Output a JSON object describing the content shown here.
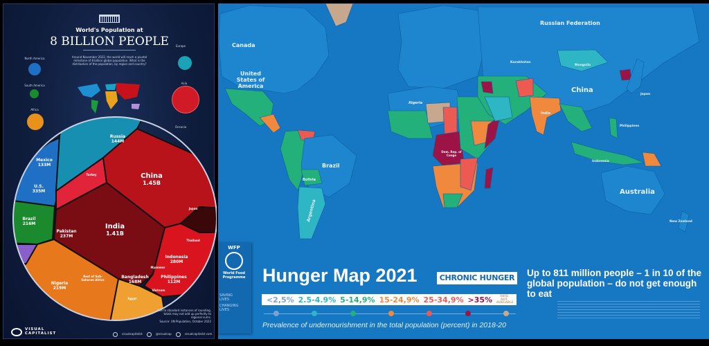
{
  "population": {
    "kicker": "World's Population at",
    "title": "8 BILLION PEOPLE",
    "intro": "Around November 2022, the world will reach a pivotal milestone of 8 billion global population. What is the distribution of the population, by region and country?",
    "regions": {
      "north_america": "North America",
      "south_america": "South America",
      "africa": "Africa",
      "europe": "Europe",
      "asia": "Asia",
      "oceania": "Oceania"
    },
    "countries": [
      {
        "name": "China",
        "value": "1.45B"
      },
      {
        "name": "India",
        "value": "1.41B"
      },
      {
        "name": "U.S.",
        "value": "335M"
      },
      {
        "name": "Brazil",
        "value": "216M"
      },
      {
        "name": "Indonesia",
        "value": "280M"
      },
      {
        "name": "Nigeria",
        "value": "219M"
      },
      {
        "name": "Pakistan",
        "value": "237M"
      },
      {
        "name": "Mexico",
        "value": "133M"
      },
      {
        "name": "Russia",
        "value": "144M"
      },
      {
        "name": "Bangladesh",
        "value": "168M"
      },
      {
        "name": "Philippines",
        "value": "112M"
      },
      {
        "name": "Myanmar",
        "value": ""
      },
      {
        "name": "Vietnam",
        "value": ""
      },
      {
        "name": "Japan",
        "value": ""
      },
      {
        "name": "Thailand",
        "value": ""
      },
      {
        "name": "Turkey",
        "value": ""
      },
      {
        "name": "Egypt",
        "value": ""
      },
      {
        "name": "Rest of Sub-Saharan Africa",
        "value": ""
      }
    ],
    "footnote": "Due to standard instances of rounding, totals may not add up perfectly to regional sums.",
    "source": "Source: UN Population, October 2022",
    "logo": "VISUAL CAPITALIST",
    "social": [
      "visualcapitalist",
      "@visualcap",
      "visualcapitalist.com"
    ],
    "colors": {
      "asia": "#b5121b",
      "india": "#7a0c14",
      "europe": "#1aa3c4",
      "north_america": "#1f6fc4",
      "south_america": "#1b8a2e",
      "africa": "#e8781c",
      "oceania": "#8a5fc9"
    }
  },
  "hunger": {
    "wfp": {
      "abbr": "WFP",
      "name": "World Food Programme",
      "tagline1": "SAVING LIVES",
      "tagline2": "CHANGING LIVES"
    },
    "title": "Hunger Map 2021",
    "badge": "CHRONIC HUNGER",
    "headline": "Up to 811 million people – 1 in 10 of the global population – do not get enough to eat",
    "caption": "Prevalence of undernourishment in the total population (percent) in 2018-20",
    "legend": [
      {
        "label": "<2,5%",
        "color": "#7fa2cc"
      },
      {
        "label": "2.5-4.9%",
        "color": "#2fb6c4"
      },
      {
        "label": "5-14,9%",
        "color": "#24b07a"
      },
      {
        "label": "15-24,9%",
        "color": "#f0883e"
      },
      {
        "label": "25-34,9%",
        "color": "#ec5a52"
      },
      {
        "label": ">35%",
        "color": "#9c1446"
      },
      {
        "label": "DATA NOT AVAILABLE",
        "color": "#c7a88e"
      }
    ],
    "map_labels": [
      "Canada",
      "United States of America",
      "Brazil",
      "Bolivia",
      "Argentina",
      "Algeria",
      "Dem. Rep. of Congo",
      "Russian Federation",
      "Kazakhstan",
      "Mongolia",
      "China",
      "India",
      "Japan",
      "Philippines",
      "Indonesia",
      "Australia",
      "New Zealand"
    ]
  }
}
